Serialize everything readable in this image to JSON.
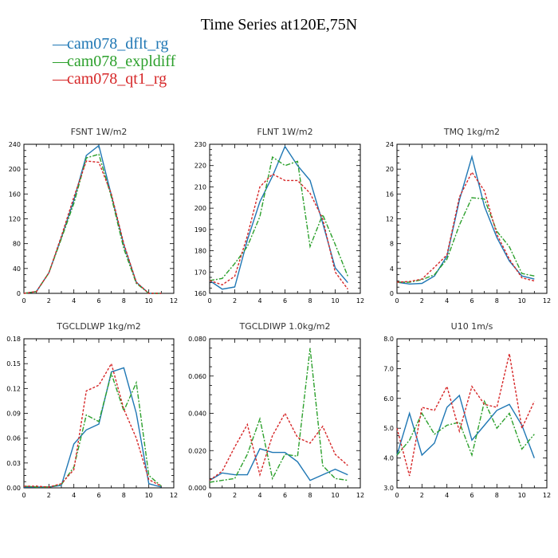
{
  "title": "Time Series at120E,75N",
  "legend": [
    {
      "name": "cam078_dflt_rg",
      "color": "#1f77b4"
    },
    {
      "name": "cam078_expldiff",
      "color": "#2ca02c"
    },
    {
      "name": "cam078_qt1_rg",
      "color": "#d62728"
    }
  ],
  "chart_data": [
    {
      "type": "line",
      "title": "FSNT   1W/m2",
      "xlim": [
        0,
        12
      ],
      "xticks": [
        0,
        2,
        4,
        6,
        8,
        10,
        12
      ],
      "ylim": [
        0,
        240
      ],
      "yticks": [
        0,
        40,
        80,
        120,
        160,
        200,
        240
      ],
      "ytick_labels": [
        "0",
        "40",
        "80",
        "120",
        "160",
        "200",
        "240"
      ],
      "x": [
        0,
        1,
        2,
        3,
        4,
        5,
        6,
        7,
        8,
        9,
        10,
        11
      ],
      "series": [
        {
          "name": "cam078_dflt_rg",
          "values": [
            0,
            3,
            33,
            90,
            150,
            222,
            238,
            158,
            78,
            18,
            0,
            0
          ]
        },
        {
          "name": "cam078_expldiff",
          "values": [
            0,
            3,
            33,
            88,
            145,
            218,
            224,
            155,
            72,
            16,
            0,
            0
          ]
        },
        {
          "name": "cam078_qt1_rg",
          "values": [
            0,
            3,
            33,
            92,
            155,
            213,
            211,
            160,
            80,
            18,
            0,
            0
          ]
        }
      ]
    },
    {
      "type": "line",
      "title": "FLNT   1W/m2",
      "xlim": [
        0,
        12
      ],
      "xticks": [
        0,
        2,
        4,
        6,
        8,
        10,
        12
      ],
      "ylim": [
        160,
        230
      ],
      "yticks": [
        160,
        170,
        180,
        190,
        200,
        210,
        220,
        230
      ],
      "ytick_labels": [
        "160",
        "170",
        "180",
        "190",
        "200",
        "210",
        "220",
        "230"
      ],
      "x": [
        0,
        1,
        2,
        3,
        4,
        5,
        6,
        7,
        8,
        9,
        10,
        11
      ],
      "series": [
        {
          "name": "cam078_dflt_rg",
          "values": [
            166,
            162,
            163,
            185,
            203,
            215,
            229,
            220,
            213,
            193,
            172,
            165
          ]
        },
        {
          "name": "cam078_expldiff",
          "values": [
            166,
            167,
            174,
            182,
            196,
            224,
            220,
            222,
            182,
            197,
            183,
            168
          ]
        },
        {
          "name": "cam078_qt1_rg",
          "values": [
            166,
            164,
            168,
            187,
            210,
            216,
            213,
            213,
            207,
            195,
            170,
            162
          ]
        }
      ]
    },
    {
      "type": "line",
      "title": "TMQ   1kg/m2",
      "xlim": [
        0,
        12
      ],
      "xticks": [
        0,
        2,
        4,
        6,
        8,
        10,
        12
      ],
      "ylim": [
        0,
        24
      ],
      "yticks": [
        0,
        4,
        8,
        12,
        16,
        20,
        24
      ],
      "ytick_labels": [
        "0",
        "4",
        "8",
        "12",
        "16",
        "20",
        "24"
      ],
      "x": [
        0,
        1,
        2,
        3,
        4,
        5,
        6,
        7,
        8,
        9,
        10,
        11
      ],
      "series": [
        {
          "name": "cam078_dflt_rg",
          "values": [
            1.8,
            1.5,
            1.6,
            2.8,
            6.0,
            15.0,
            22.0,
            14.0,
            9.0,
            5.2,
            2.8,
            2.3
          ]
        },
        {
          "name": "cam078_expldiff",
          "values": [
            1.8,
            1.8,
            2.2,
            3.0,
            5.5,
            11.0,
            15.4,
            15.2,
            10.0,
            7.5,
            3.2,
            2.8
          ]
        },
        {
          "name": "cam078_qt1_rg",
          "values": [
            1.8,
            1.9,
            2.3,
            4.2,
            6.2,
            15.5,
            19.5,
            16.5,
            9.5,
            5.5,
            2.5,
            2.0
          ]
        }
      ]
    },
    {
      "type": "line",
      "title": "TGCLDLWP   1kg/m2",
      "xlim": [
        0,
        12
      ],
      "xticks": [
        0,
        2,
        4,
        6,
        8,
        10,
        12
      ],
      "ylim": [
        0,
        0.18
      ],
      "yticks": [
        0,
        0.03,
        0.06,
        0.09,
        0.12,
        0.15,
        0.18
      ],
      "ytick_labels": [
        "0.00",
        "0.03",
        "0.06",
        "0.09",
        "0.12",
        "0.15",
        "0.18"
      ],
      "x": [
        0,
        1,
        2,
        3,
        4,
        5,
        6,
        7,
        8,
        9,
        10,
        11
      ],
      "series": [
        {
          "name": "cam078_dflt_rg",
          "values": [
            0.001,
            0.001,
            0.001,
            0.003,
            0.053,
            0.07,
            0.077,
            0.14,
            0.145,
            0.09,
            0.005,
            0.001
          ]
        },
        {
          "name": "cam078_expldiff",
          "values": [
            0.002,
            0.001,
            0.001,
            0.004,
            0.025,
            0.088,
            0.08,
            0.138,
            0.093,
            0.127,
            0.015,
            0.002
          ]
        },
        {
          "name": "cam078_qt1_rg",
          "values": [
            0.002,
            0.002,
            0.001,
            0.005,
            0.022,
            0.117,
            0.124,
            0.15,
            0.095,
            0.06,
            0.01,
            0.002
          ]
        }
      ]
    },
    {
      "type": "line",
      "title": "TGCLDIWP   1.0kg/m2",
      "xlim": [
        0,
        12
      ],
      "xticks": [
        0,
        2,
        4,
        6,
        8,
        10,
        12
      ],
      "ylim": [
        0,
        0.08
      ],
      "yticks": [
        0,
        0.02,
        0.04,
        0.06,
        0.08
      ],
      "ytick_labels": [
        "0.000",
        "0.020",
        "0.040",
        "0.060",
        "0.080"
      ],
      "x": [
        0,
        1,
        2,
        3,
        4,
        5,
        6,
        7,
        8,
        9,
        10,
        11
      ],
      "series": [
        {
          "name": "cam078_dflt_rg",
          "values": [
            0.004,
            0.008,
            0.007,
            0.007,
            0.021,
            0.019,
            0.019,
            0.014,
            0.004,
            0.007,
            0.01,
            0.007
          ]
        },
        {
          "name": "cam078_expldiff",
          "values": [
            0.003,
            0.004,
            0.005,
            0.018,
            0.037,
            0.005,
            0.018,
            0.017,
            0.075,
            0.012,
            0.005,
            0.004
          ]
        },
        {
          "name": "cam078_qt1_rg",
          "values": [
            0.004,
            0.009,
            0.022,
            0.034,
            0.007,
            0.028,
            0.04,
            0.027,
            0.024,
            0.033,
            0.018,
            0.012
          ]
        }
      ]
    },
    {
      "type": "line",
      "title": "U10   1m/s",
      "xlim": [
        0,
        12
      ],
      "xticks": [
        0,
        2,
        4,
        6,
        8,
        10,
        12
      ],
      "ylim": [
        3.0,
        8.0
      ],
      "yticks": [
        3.0,
        4.0,
        5.0,
        6.0,
        7.0,
        8.0
      ],
      "ytick_labels": [
        "3.0",
        "4.0",
        "5.0",
        "6.0",
        "7.0",
        "8.0"
      ],
      "x": [
        0,
        1,
        2,
        3,
        4,
        5,
        6,
        7,
        8,
        9,
        10,
        11
      ],
      "series": [
        {
          "name": "cam078_dflt_rg",
          "values": [
            4.1,
            5.5,
            4.1,
            4.5,
            5.7,
            6.1,
            4.6,
            5.1,
            5.6,
            5.8,
            5.1,
            4.0
          ]
        },
        {
          "name": "cam078_expldiff",
          "values": [
            4.1,
            4.6,
            5.5,
            4.8,
            5.1,
            5.2,
            4.1,
            5.9,
            5.0,
            5.5,
            4.3,
            4.8
          ]
        },
        {
          "name": "cam078_qt1_rg",
          "values": [
            5.0,
            3.4,
            5.7,
            5.6,
            6.4,
            4.9,
            6.4,
            5.8,
            5.7,
            7.5,
            5.0,
            5.9
          ]
        }
      ]
    }
  ]
}
